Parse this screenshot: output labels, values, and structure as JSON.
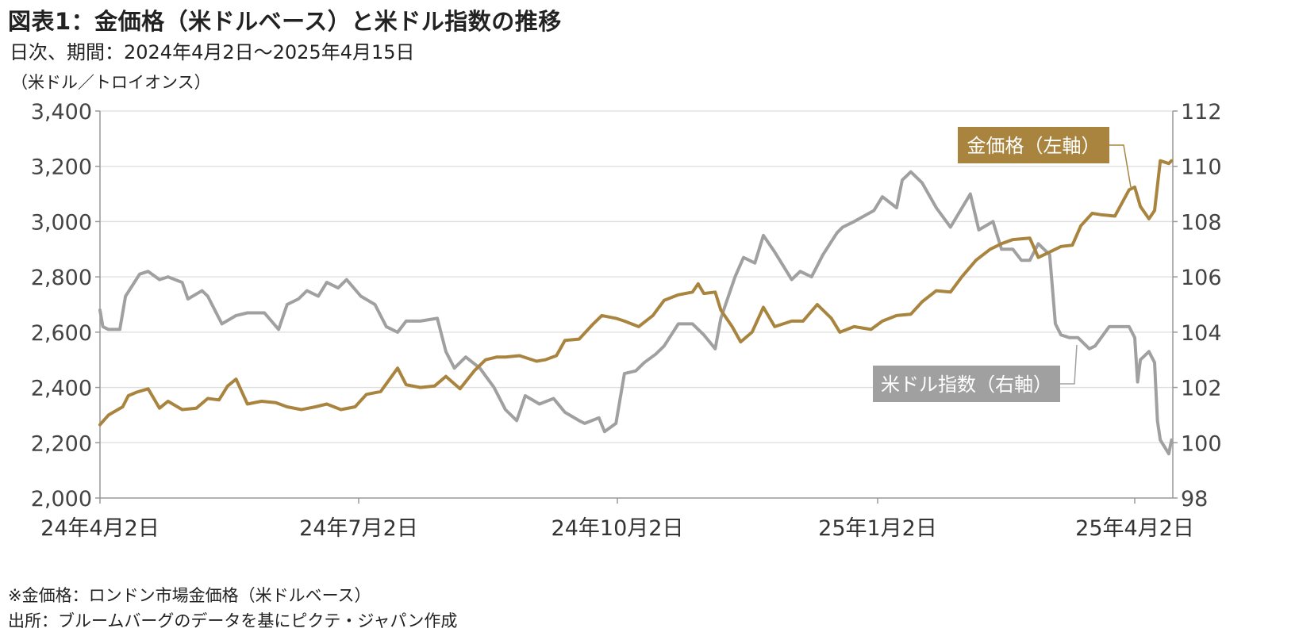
{
  "title": "図表1：金価格（米ドルベース）と米ドル指数の推移",
  "subtitle": "日次、期間：2024年4月2日～2025年4月15日",
  "unit_label": "（米ドル／トロイオンス）",
  "notes": {
    "note1": "※金価格：ロンドン市場金価格（米ドルベース）",
    "note2": "出所：ブルームバーグのデータを基にピクテ・ジャパン作成"
  },
  "colors": {
    "gold": "#a8843f",
    "dxy": "#a0a0a0",
    "grid": "#dddddd",
    "axis": "#999999"
  },
  "chart_data": {
    "type": "line",
    "x_ticks": [
      "24年4月2日",
      "24年7月2日",
      "24年10月2日",
      "25年1月2日",
      "25年4月2日"
    ],
    "x_range": [
      "2024-04-02",
      "2025-04-15"
    ],
    "y_left": {
      "ticks": [
        "2,000",
        "2,200",
        "2,400",
        "2,600",
        "2,800",
        "3,000",
        "3,200",
        "3,400"
      ],
      "range": [
        2000,
        3400
      ]
    },
    "y_right": {
      "ticks": [
        "98",
        "100",
        "102",
        "104",
        "106",
        "108",
        "110",
        "112"
      ],
      "range": [
        98,
        112
      ]
    },
    "grid": true,
    "series": [
      {
        "name": "金価格（左軸）",
        "axis": "left",
        "color": "#a8843f",
        "points": [
          [
            "2024-04-02",
            2265
          ],
          [
            "2024-04-05",
            2300
          ],
          [
            "2024-04-10",
            2330
          ],
          [
            "2024-04-12",
            2370
          ],
          [
            "2024-04-15",
            2383
          ],
          [
            "2024-04-19",
            2395
          ],
          [
            "2024-04-23",
            2325
          ],
          [
            "2024-04-26",
            2350
          ],
          [
            "2024-05-01",
            2320
          ],
          [
            "2024-05-06",
            2325
          ],
          [
            "2024-05-10",
            2360
          ],
          [
            "2024-05-14",
            2355
          ],
          [
            "2024-05-17",
            2405
          ],
          [
            "2024-05-20",
            2430
          ],
          [
            "2024-05-24",
            2340
          ],
          [
            "2024-05-29",
            2350
          ],
          [
            "2024-06-03",
            2345
          ],
          [
            "2024-06-07",
            2330
          ],
          [
            "2024-06-12",
            2320
          ],
          [
            "2024-06-17",
            2330
          ],
          [
            "2024-06-21",
            2340
          ],
          [
            "2024-06-26",
            2320
          ],
          [
            "2024-07-01",
            2330
          ],
          [
            "2024-07-05",
            2375
          ],
          [
            "2024-07-10",
            2385
          ],
          [
            "2024-07-16",
            2470
          ],
          [
            "2024-07-19",
            2410
          ],
          [
            "2024-07-24",
            2400
          ],
          [
            "2024-07-29",
            2405
          ],
          [
            "2024-08-02",
            2440
          ],
          [
            "2024-08-07",
            2395
          ],
          [
            "2024-08-12",
            2460
          ],
          [
            "2024-08-16",
            2500
          ],
          [
            "2024-08-20",
            2510
          ],
          [
            "2024-08-23",
            2510
          ],
          [
            "2024-08-28",
            2515
          ],
          [
            "2024-09-03",
            2495
          ],
          [
            "2024-09-06",
            2500
          ],
          [
            "2024-09-10",
            2515
          ],
          [
            "2024-09-13",
            2570
          ],
          [
            "2024-09-18",
            2575
          ],
          [
            "2024-09-23",
            2630
          ],
          [
            "2024-09-26",
            2660
          ],
          [
            "2024-10-01",
            2650
          ],
          [
            "2024-10-04",
            2640
          ],
          [
            "2024-10-09",
            2620
          ],
          [
            "2024-10-14",
            2660
          ],
          [
            "2024-10-18",
            2715
          ],
          [
            "2024-10-23",
            2735
          ],
          [
            "2024-10-28",
            2745
          ],
          [
            "2024-10-30",
            2775
          ],
          [
            "2024-11-01",
            2740
          ],
          [
            "2024-11-05",
            2745
          ],
          [
            "2024-11-07",
            2680
          ],
          [
            "2024-11-11",
            2620
          ],
          [
            "2024-11-14",
            2565
          ],
          [
            "2024-11-18",
            2600
          ],
          [
            "2024-11-22",
            2690
          ],
          [
            "2024-11-26",
            2620
          ],
          [
            "2024-12-02",
            2640
          ],
          [
            "2024-12-06",
            2640
          ],
          [
            "2024-12-11",
            2700
          ],
          [
            "2024-12-16",
            2650
          ],
          [
            "2024-12-19",
            2600
          ],
          [
            "2024-12-24",
            2620
          ],
          [
            "2024-12-30",
            2610
          ],
          [
            "2025-01-03",
            2640
          ],
          [
            "2025-01-08",
            2660
          ],
          [
            "2025-01-13",
            2665
          ],
          [
            "2025-01-17",
            2710
          ],
          [
            "2025-01-22",
            2750
          ],
          [
            "2025-01-27",
            2745
          ],
          [
            "2025-01-31",
            2800
          ],
          [
            "2025-02-05",
            2860
          ],
          [
            "2025-02-10",
            2900
          ],
          [
            "2025-02-14",
            2920
          ],
          [
            "2025-02-18",
            2935
          ],
          [
            "2025-02-24",
            2940
          ],
          [
            "2025-02-27",
            2870
          ],
          [
            "2025-03-03",
            2890
          ],
          [
            "2025-03-07",
            2910
          ],
          [
            "2025-03-11",
            2915
          ],
          [
            "2025-03-14",
            2985
          ],
          [
            "2025-03-18",
            3030
          ],
          [
            "2025-03-21",
            3025
          ],
          [
            "2025-03-26",
            3020
          ],
          [
            "2025-03-31",
            3115
          ],
          [
            "2025-04-02",
            3125
          ],
          [
            "2025-04-04",
            3055
          ],
          [
            "2025-04-07",
            3010
          ],
          [
            "2025-04-09",
            3040
          ],
          [
            "2025-04-11",
            3220
          ],
          [
            "2025-04-14",
            3210
          ],
          [
            "2025-04-15",
            3220
          ]
        ]
      },
      {
        "name": "米ドル指数（右軸）",
        "axis": "right",
        "color": "#a0a0a0",
        "points": [
          [
            "2024-04-02",
            104.8
          ],
          [
            "2024-04-03",
            104.2
          ],
          [
            "2024-04-05",
            104.1
          ],
          [
            "2024-04-09",
            104.1
          ],
          [
            "2024-04-11",
            105.3
          ],
          [
            "2024-04-16",
            106.1
          ],
          [
            "2024-04-19",
            106.2
          ],
          [
            "2024-04-23",
            105.9
          ],
          [
            "2024-04-26",
            106.0
          ],
          [
            "2024-05-01",
            105.8
          ],
          [
            "2024-05-03",
            105.2
          ],
          [
            "2024-05-08",
            105.5
          ],
          [
            "2024-05-10",
            105.3
          ],
          [
            "2024-05-15",
            104.3
          ],
          [
            "2024-05-20",
            104.6
          ],
          [
            "2024-05-24",
            104.7
          ],
          [
            "2024-05-30",
            104.7
          ],
          [
            "2024-06-04",
            104.1
          ],
          [
            "2024-06-07",
            105.0
          ],
          [
            "2024-06-11",
            105.2
          ],
          [
            "2024-06-14",
            105.5
          ],
          [
            "2024-06-18",
            105.3
          ],
          [
            "2024-06-21",
            105.8
          ],
          [
            "2024-06-25",
            105.6
          ],
          [
            "2024-06-28",
            105.9
          ],
          [
            "2024-07-03",
            105.3
          ],
          [
            "2024-07-08",
            105.0
          ],
          [
            "2024-07-12",
            104.2
          ],
          [
            "2024-07-16",
            104.0
          ],
          [
            "2024-07-19",
            104.4
          ],
          [
            "2024-07-24",
            104.4
          ],
          [
            "2024-07-30",
            104.5
          ],
          [
            "2024-08-02",
            103.3
          ],
          [
            "2024-08-05",
            102.7
          ],
          [
            "2024-08-09",
            103.1
          ],
          [
            "2024-08-14",
            102.7
          ],
          [
            "2024-08-19",
            102.0
          ],
          [
            "2024-08-23",
            101.2
          ],
          [
            "2024-08-27",
            100.8
          ],
          [
            "2024-08-30",
            101.7
          ],
          [
            "2024-09-04",
            101.4
          ],
          [
            "2024-09-09",
            101.6
          ],
          [
            "2024-09-13",
            101.1
          ],
          [
            "2024-09-18",
            100.8
          ],
          [
            "2024-09-20",
            100.7
          ],
          [
            "2024-09-25",
            100.9
          ],
          [
            "2024-09-27",
            100.4
          ],
          [
            "2024-10-01",
            100.7
          ],
          [
            "2024-10-04",
            102.5
          ],
          [
            "2024-10-08",
            102.6
          ],
          [
            "2024-10-11",
            102.9
          ],
          [
            "2024-10-15",
            103.2
          ],
          [
            "2024-10-18",
            103.5
          ],
          [
            "2024-10-23",
            104.3
          ],
          [
            "2024-10-28",
            104.3
          ],
          [
            "2024-11-01",
            103.9
          ],
          [
            "2024-11-05",
            103.4
          ],
          [
            "2024-11-07",
            104.5
          ],
          [
            "2024-11-12",
            106.0
          ],
          [
            "2024-11-15",
            106.7
          ],
          [
            "2024-11-19",
            106.5
          ],
          [
            "2024-11-22",
            107.5
          ],
          [
            "2024-11-26",
            106.9
          ],
          [
            "2024-12-02",
            105.9
          ],
          [
            "2024-12-05",
            106.2
          ],
          [
            "2024-12-09",
            106.0
          ],
          [
            "2024-12-13",
            106.8
          ],
          [
            "2024-12-18",
            107.6
          ],
          [
            "2024-12-20",
            107.8
          ],
          [
            "2024-12-24",
            108.0
          ],
          [
            "2024-12-31",
            108.4
          ],
          [
            "2025-01-03",
            108.9
          ],
          [
            "2025-01-08",
            108.5
          ],
          [
            "2025-01-10",
            109.5
          ],
          [
            "2025-01-13",
            109.8
          ],
          [
            "2025-01-17",
            109.4
          ],
          [
            "2025-01-22",
            108.5
          ],
          [
            "2025-01-27",
            107.8
          ],
          [
            "2025-02-03",
            109.0
          ],
          [
            "2025-02-06",
            107.7
          ],
          [
            "2025-02-11",
            108.0
          ],
          [
            "2025-02-14",
            107.0
          ],
          [
            "2025-02-18",
            107.0
          ],
          [
            "2025-02-21",
            106.6
          ],
          [
            "2025-02-24",
            106.6
          ],
          [
            "2025-02-27",
            107.2
          ],
          [
            "2025-03-03",
            106.8
          ],
          [
            "2025-03-05",
            104.3
          ],
          [
            "2025-03-07",
            103.9
          ],
          [
            "2025-03-10",
            103.8
          ],
          [
            "2025-03-13",
            103.8
          ],
          [
            "2025-03-17",
            103.4
          ],
          [
            "2025-03-19",
            103.5
          ],
          [
            "2025-03-24",
            104.2
          ],
          [
            "2025-03-27",
            104.2
          ],
          [
            "2025-03-31",
            104.2
          ],
          [
            "2025-04-02",
            103.8
          ],
          [
            "2025-04-03",
            102.2
          ],
          [
            "2025-04-04",
            103.0
          ],
          [
            "2025-04-07",
            103.3
          ],
          [
            "2025-04-09",
            102.9
          ],
          [
            "2025-04-10",
            100.8
          ],
          [
            "2025-04-11",
            100.1
          ],
          [
            "2025-04-14",
            99.6
          ],
          [
            "2025-04-15",
            100.1
          ]
        ]
      }
    ]
  }
}
